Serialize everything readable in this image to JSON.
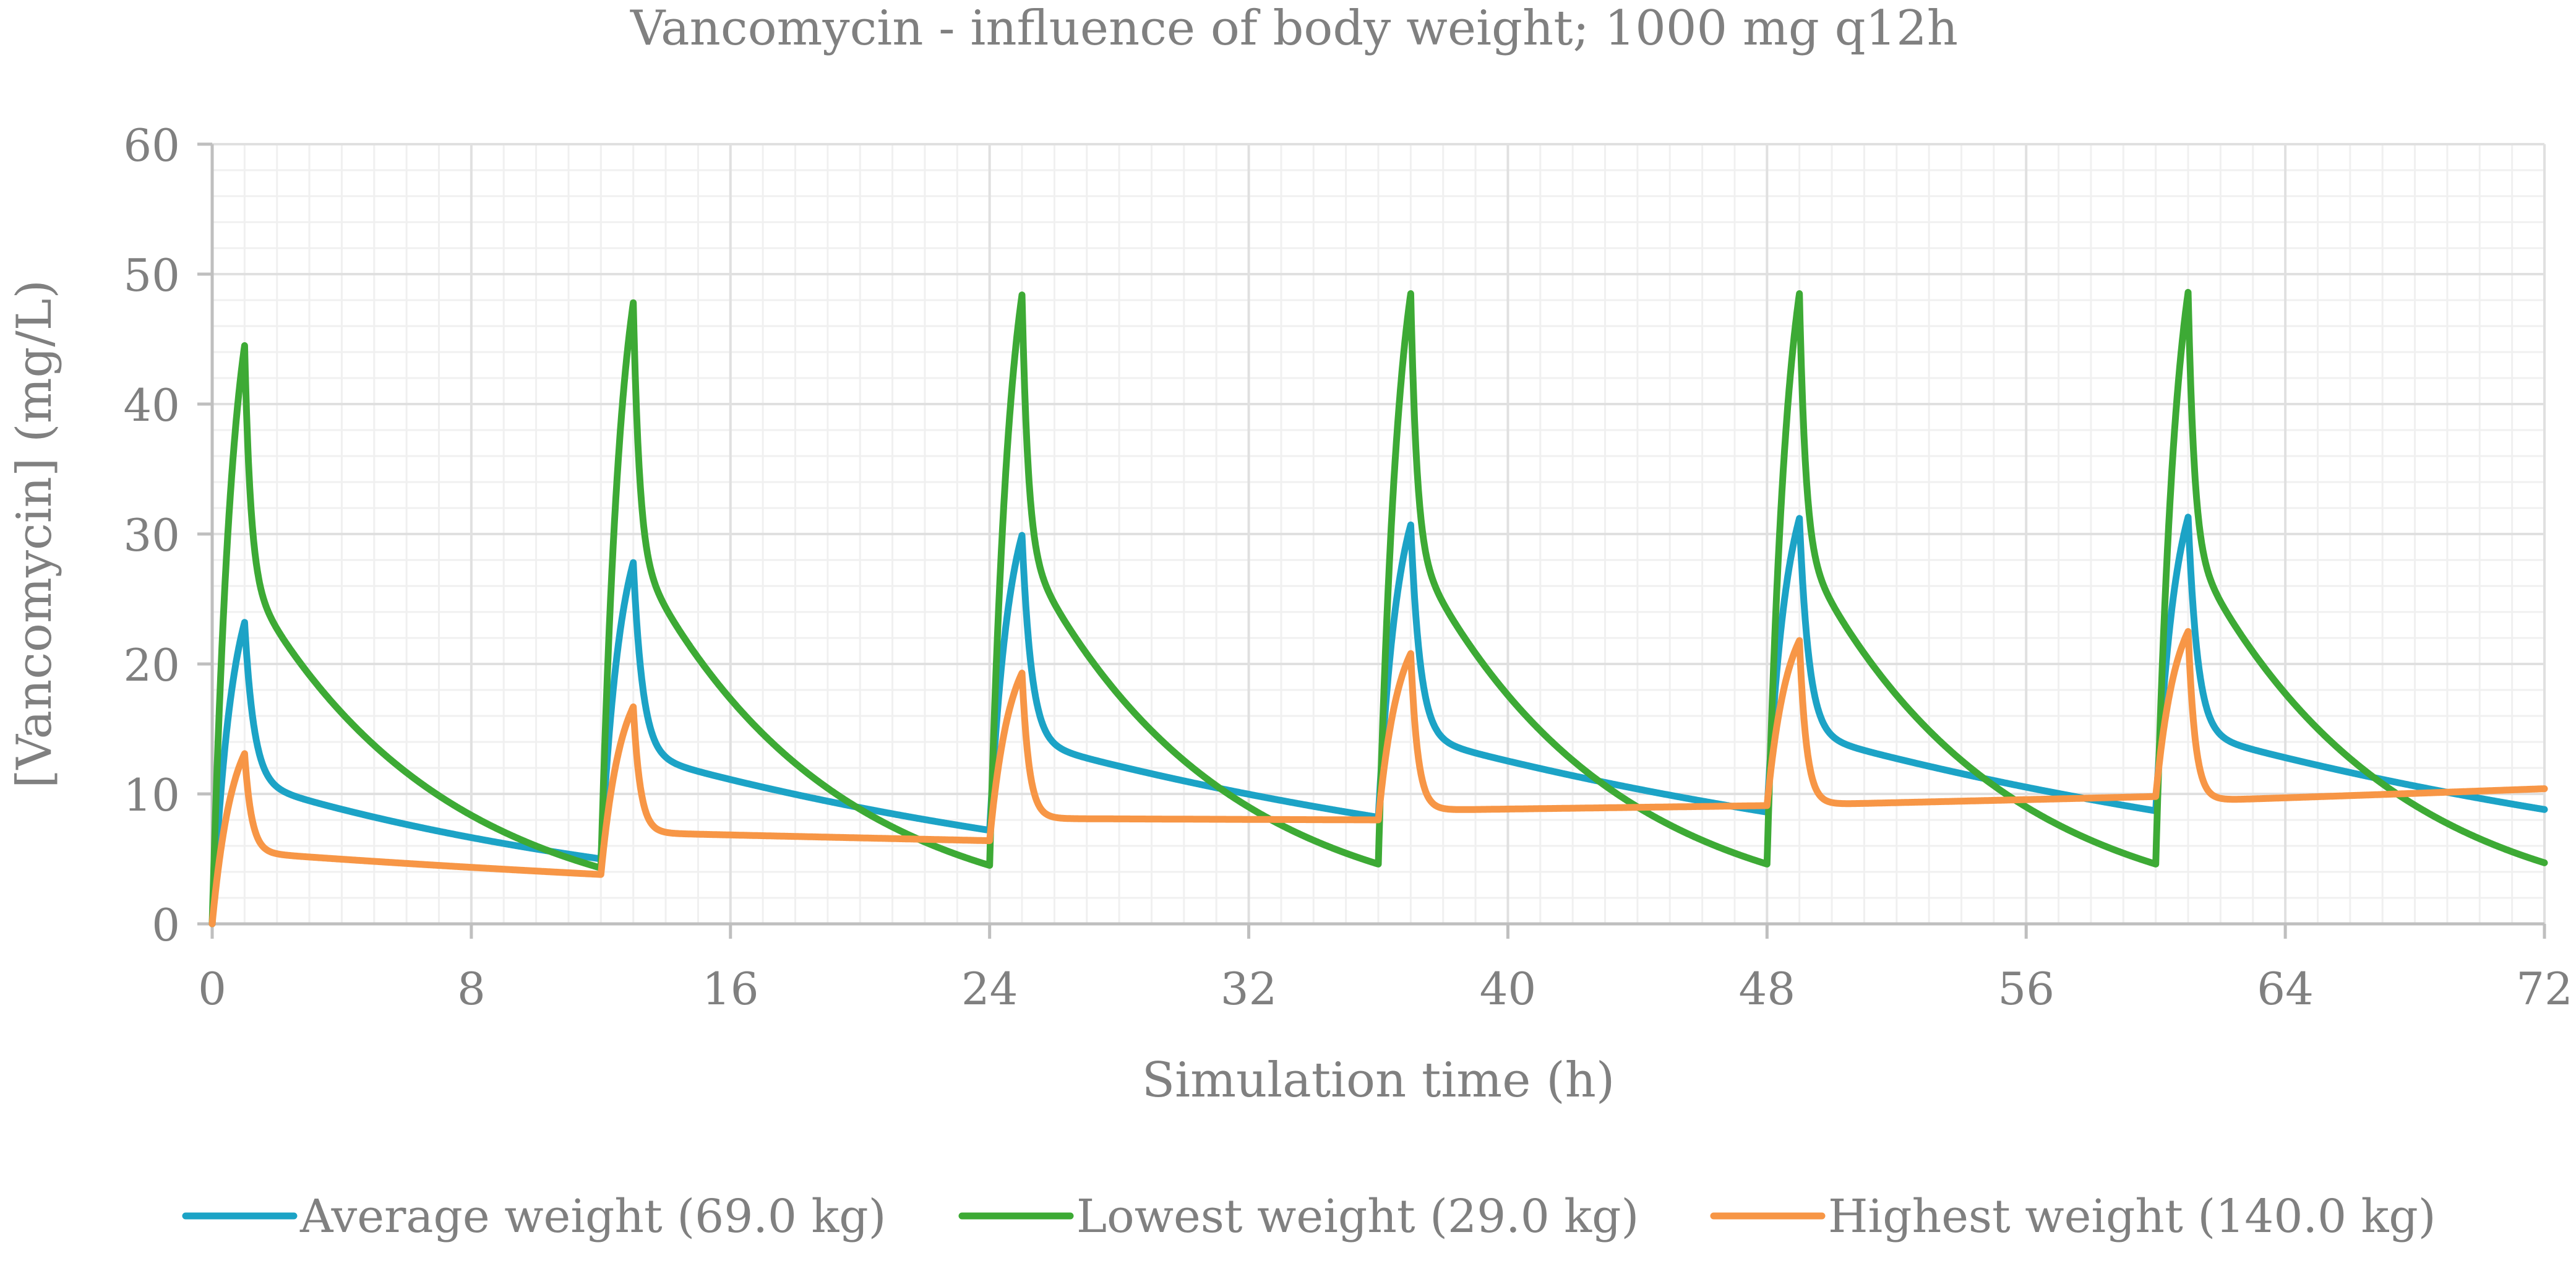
{
  "chart_data": {
    "type": "line",
    "title": "Vancomycin - influence of body weight; 1000 mg q12h",
    "xlabel": "Simulation time (h)",
    "ylabel": "[Vancomycin] (mg/L)",
    "xlim": [
      0,
      72
    ],
    "ylim": [
      0,
      60
    ],
    "x_ticks": [
      0,
      8,
      16,
      24,
      32,
      40,
      48,
      56,
      64,
      72
    ],
    "y_ticks": [
      0,
      10,
      20,
      30,
      40,
      50,
      60
    ],
    "x_minor_step": 1,
    "y_minor_step": 2,
    "grid": true,
    "legend_position": "bottom",
    "dosing": {
      "dose_mg": 1000,
      "interval_h": 12,
      "infusion_h": 1
    },
    "series": [
      {
        "name": "Average weight (69.0 kg)",
        "color": "#1ca3c6",
        "x": [
          0,
          12,
          24,
          36,
          48,
          60
        ],
        "peaks": [
          23.2,
          27.8,
          29.9,
          30.7,
          31.2,
          31.3
        ],
        "troughs": [
          5.0,
          7.2,
          8.2,
          8.6,
          8.7,
          8.8
        ],
        "start": 0,
        "dist_fraction": 0.53,
        "dist_halflife_h": 0.2
      },
      {
        "name": "Lowest weight (29.0 kg)",
        "color": "#3daa35",
        "x": [
          0,
          12,
          24,
          36,
          48,
          60
        ],
        "peaks": [
          44.5,
          47.8,
          48.4,
          48.5,
          48.5,
          48.6
        ],
        "troughs": [
          4.3,
          4.5,
          4.6,
          4.6,
          4.6,
          4.7
        ],
        "start": 0,
        "dist_fraction": 0.4,
        "dist_halflife_h": 0.13
      },
      {
        "name": "Highest weight (140.0 kg)",
        "color": "#f79646",
        "x": [
          0,
          12,
          24,
          36,
          48,
          60
        ],
        "peaks": [
          13.1,
          16.7,
          19.3,
          20.8,
          21.8,
          22.5
        ],
        "troughs": [
          3.8,
          6.4,
          8.0,
          9.1,
          9.8,
          10.4
        ],
        "start": 0,
        "dist_fraction": 0.58,
        "dist_halflife_h": 0.15
      }
    ]
  }
}
